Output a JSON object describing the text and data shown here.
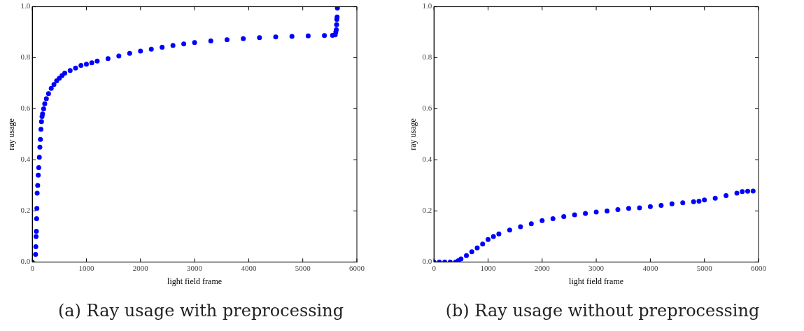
{
  "chart_data": [
    {
      "type": "scatter",
      "title": "(a) Ray usage with preprocessing",
      "xlabel": "light field frame",
      "ylabel": "ray usage",
      "xlim": [
        0,
        6000
      ],
      "ylim": [
        0,
        1
      ],
      "xticks": [
        0,
        1000,
        2000,
        3000,
        4000,
        5000,
        6000
      ],
      "yticks": [
        {
          "value": 0,
          "label": "0.0"
        },
        {
          "value": 0.2,
          "label": "0.2"
        },
        {
          "value": 0.4,
          "label": "0.4"
        },
        {
          "value": 0.6,
          "label": "0.6"
        },
        {
          "value": 0.8,
          "label": "0.8"
        },
        {
          "value": 1,
          "label": "1.0"
        }
      ],
      "marker": "circle",
      "series": [
        {
          "color": "#0000ff",
          "x": [
            0,
            60,
            65,
            70,
            75,
            80,
            85,
            90,
            100,
            110,
            120,
            130,
            140,
            150,
            160,
            170,
            180,
            190,
            210,
            230,
            260,
            300,
            350,
            400,
            450,
            500,
            550,
            600,
            700,
            800,
            900,
            1000,
            1100,
            1200,
            1400,
            1600,
            1800,
            2000,
            2200,
            2400,
            2600,
            2800,
            3000,
            3300,
            3600,
            3900,
            4200,
            4500,
            4800,
            5100,
            5400,
            5550,
            5600,
            5610,
            5620,
            5625,
            5630,
            5635,
            5640
          ],
          "values": [
            0,
            0.03,
            0.06,
            0.1,
            0.12,
            0.17,
            0.21,
            0.27,
            0.3,
            0.34,
            0.37,
            0.41,
            0.45,
            0.48,
            0.52,
            0.55,
            0.57,
            0.58,
            0.6,
            0.62,
            0.64,
            0.66,
            0.68,
            0.695,
            0.71,
            0.72,
            0.73,
            0.74,
            0.75,
            0.76,
            0.77,
            0.775,
            0.78,
            0.787,
            0.797,
            0.807,
            0.817,
            0.826,
            0.834,
            0.841,
            0.848,
            0.854,
            0.86,
            0.866,
            0.871,
            0.875,
            0.879,
            0.882,
            0.884,
            0.886,
            0.887,
            0.888,
            0.89,
            0.9,
            0.91,
            0.93,
            0.95,
            0.96,
            0.995
          ]
        }
      ]
    },
    {
      "type": "scatter",
      "title": "(b) Ray usage without preprocessing",
      "xlabel": "light field frame",
      "ylabel": "ray usage",
      "xlim": [
        0,
        6000
      ],
      "ylim": [
        0,
        1
      ],
      "xticks": [
        0,
        1000,
        2000,
        3000,
        4000,
        5000,
        6000
      ],
      "yticks": [
        {
          "value": 0,
          "label": "0.0"
        },
        {
          "value": 0.2,
          "label": "0.2"
        },
        {
          "value": 0.4,
          "label": "0.4"
        },
        {
          "value": 0.6,
          "label": "0.6"
        },
        {
          "value": 0.8,
          "label": "0.8"
        },
        {
          "value": 1,
          "label": "1.0"
        }
      ],
      "marker": "circle",
      "series": [
        {
          "color": "#0000ff",
          "x": [
            0,
            100,
            200,
            300,
            400,
            450,
            500,
            600,
            700,
            800,
            900,
            1000,
            1100,
            1200,
            1400,
            1600,
            1800,
            2000,
            2200,
            2400,
            2600,
            2800,
            3000,
            3200,
            3400,
            3600,
            3800,
            4000,
            4200,
            4400,
            4600,
            4800,
            4900,
            5000,
            5200,
            5400,
            5600,
            5700,
            5800,
            5900
          ],
          "values": [
            0,
            0,
            0,
            0,
            0,
            0.005,
            0.012,
            0.025,
            0.04,
            0.055,
            0.07,
            0.088,
            0.1,
            0.11,
            0.125,
            0.138,
            0.15,
            0.162,
            0.17,
            0.178,
            0.185,
            0.19,
            0.196,
            0.2,
            0.205,
            0.21,
            0.212,
            0.217,
            0.222,
            0.228,
            0.232,
            0.236,
            0.238,
            0.243,
            0.25,
            0.26,
            0.27,
            0.276,
            0.277,
            0.278
          ]
        }
      ]
    }
  ]
}
